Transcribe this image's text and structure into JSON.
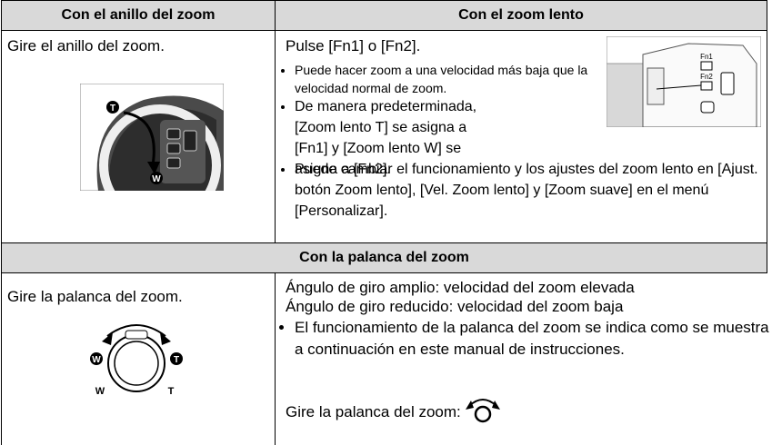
{
  "table": {
    "headers": [
      "Con el anillo del zoom",
      "Con el zoom lento"
    ],
    "row1": {
      "left": "Gire el anillo del zoom.",
      "left_image_labels": [
        "T",
        "W"
      ],
      "right_lead": "Pulse [Fn1] o [Fn2].",
      "right_image_labels": [
        "Fn1",
        "Fn2"
      ],
      "bullets": [
        "Puede hacer zoom a una velocidad más baja que la velocidad normal de zoom.",
        "De manera predeterminada, [Zoom lento T] se asigna a [Fn1] y [Zoom lento W] se asigna a [Fn2].",
        "Puede cambiar el funcionamiento y los ajustes del zoom lento en [Ajust. botón Zoom lento], [Vel. Zoom lento] y [Zoom suave] en el menú [Personalizar]."
      ]
    },
    "section2_header": "Con la palanca del zoom",
    "row2": {
      "left": "Gire la palanca del zoom.",
      "left_image_labels": [
        "W",
        "T"
      ],
      "lines": [
        "Ángulo de giro amplio: velocidad del zoom elevada",
        "Ángulo de giro reducido: velocidad del zoom baja"
      ],
      "bullets": [
        "El funcionamiento de la palanca del zoom se indica como se muestra a continuación en este manual de instrucciones."
      ],
      "icon_caption": "Gire la palanca del zoom:"
    }
  }
}
